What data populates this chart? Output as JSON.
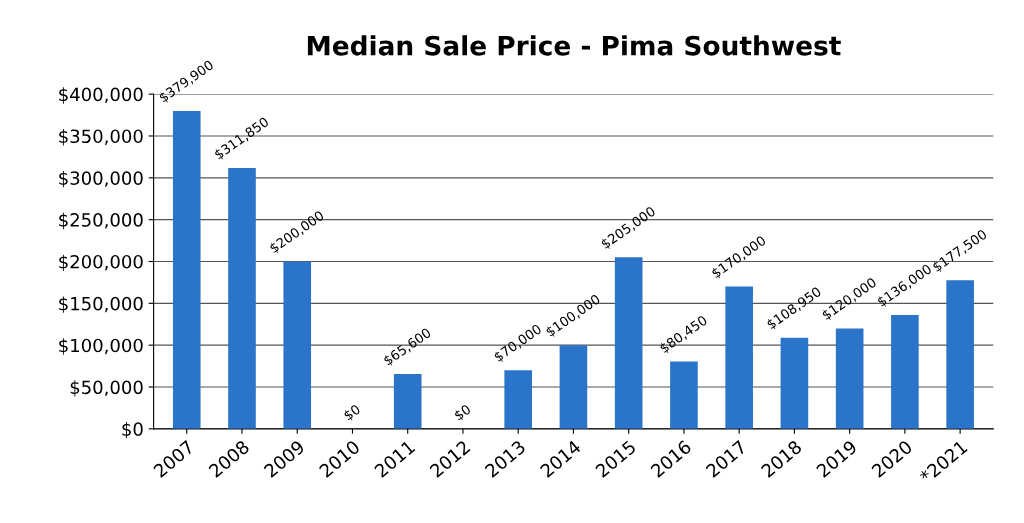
{
  "chart_data": {
    "type": "bar",
    "title": "Median Sale Price - Pima Southwest",
    "categories": [
      "2007",
      "2008",
      "2009",
      "2010",
      "2011",
      "2012",
      "2013",
      "2014",
      "2015",
      "2016",
      "2017",
      "2018",
      "2019",
      "2020",
      "*2021"
    ],
    "values": [
      379900,
      311850,
      200000,
      0,
      65600,
      0,
      70000,
      100000,
      205000,
      80450,
      170000,
      108950,
      120000,
      136000,
      177500
    ],
    "value_labels": [
      "$379,900",
      "$311,850",
      "$200,000",
      "$0",
      "$65,600",
      "$0",
      "$70,000",
      "$100,000",
      "$205,000",
      "$80,450",
      "$170,000",
      "$108,950",
      "$120,000",
      "$136,000",
      "$177,500"
    ],
    "color": "#2a74c9",
    "ylim": [
      0,
      400000
    ],
    "yticks": [
      {
        "value": 0,
        "label": "$0"
      },
      {
        "value": 50000,
        "label": "$50,000"
      },
      {
        "value": 100000,
        "label": "$100,000"
      },
      {
        "value": 150000,
        "label": "$150,000"
      },
      {
        "value": 200000,
        "label": "$200,000"
      },
      {
        "value": 250000,
        "label": "$250,000"
      },
      {
        "value": 300000,
        "label": "$300,000"
      },
      {
        "value": 350000,
        "label": "$350,000"
      },
      {
        "value": 400000,
        "label": "$400,000"
      }
    ],
    "grid": "y"
  }
}
